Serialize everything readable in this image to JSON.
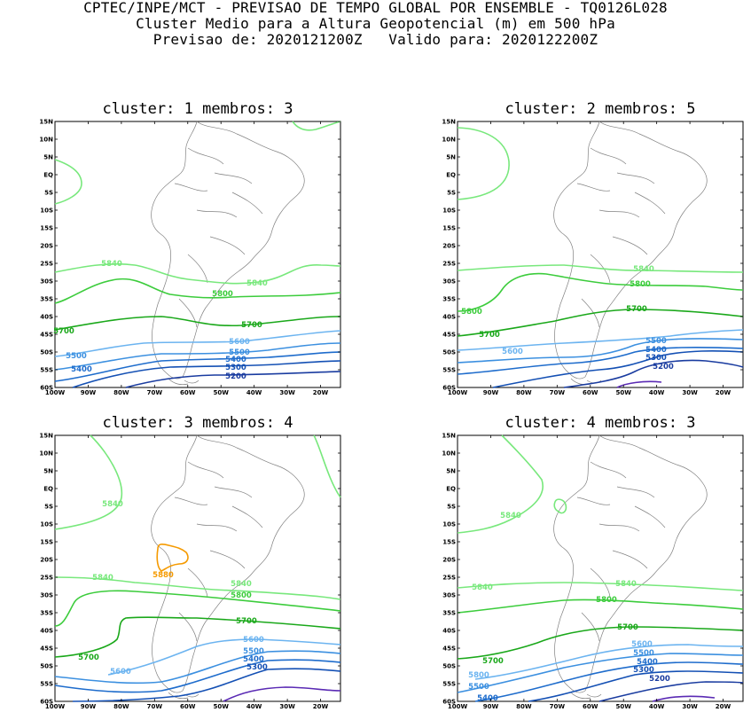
{
  "header": {
    "line1": "CPTEC/INPE/MCT - PREVISAO DE TEMPO GLOBAL POR ENSEMBLE - TQ0126L028",
    "line2": "Cluster Medio para a Altura Geopotencial (m) em 500 hPa",
    "line3": "Previsao de: 2020121200Z   Valido para: 2020122200Z"
  },
  "lat_ticks": [
    "15N",
    "10N",
    "5N",
    "EQ",
    "5S",
    "10S",
    "15S",
    "20S",
    "25S",
    "30S",
    "35S",
    "40S",
    "45S",
    "50S",
    "55S",
    "60S"
  ],
  "lon_ticks": [
    "100W",
    "90W",
    "80W",
    "70W",
    "60W",
    "50W",
    "40W",
    "30W",
    "20W"
  ],
  "colors": {
    "c5880": "#f59a00",
    "c5840": "#78e87c",
    "c5800": "#3ccc3c",
    "c5700": "#1aa81a",
    "c5600": "#6cb4f0",
    "c5500": "#3c90e0",
    "c5400": "#1e6ccc",
    "c5300": "#1450b4",
    "c5200": "#1a3ca0",
    "c5100": "#5a2ab4",
    "coast": "#808080"
  },
  "panels": [
    {
      "cluster_label": "cluster:",
      "cluster_num": "1",
      "membros_label": "membros:",
      "membros_num": "3",
      "labels": {
        "l5840a": "5840",
        "l5840b": "5840",
        "l5800": "5800",
        "l5700a": "5700",
        "l5700b": "5700",
        "l5600": "5600",
        "l5500a": "5500",
        "l5500b": "5500",
        "l5400a": "5400",
        "l5400b": "5400",
        "l5300": "5300",
        "l5200": "5200"
      }
    },
    {
      "cluster_label": "cluster:",
      "cluster_num": "2",
      "membros_label": "membros:",
      "membros_num": "5",
      "labels": {
        "l5840": "5840",
        "l5800a": "5800",
        "l5800b": "5800",
        "l5700a": "5700",
        "l5700b": "5700",
        "l5600": "5600",
        "l5500": "5500",
        "l5400": "5400",
        "l5300": "5300",
        "l5200": "5200"
      }
    },
    {
      "cluster_label": "cluster:",
      "cluster_num": "3",
      "membros_label": "membros:",
      "membros_num": "4",
      "labels": {
        "l5840a": "5840",
        "l5840b": "5840",
        "l5840c": "5840",
        "l5880": "5880",
        "l5800": "5800",
        "l5700a": "5700",
        "l5700b": "5700",
        "l5600a": "5600",
        "l5600b": "5600",
        "l5500": "5500",
        "l5400": "5400",
        "l5300": "5300"
      }
    },
    {
      "cluster_label": "cluster:",
      "cluster_num": "4",
      "membros_label": "membros:",
      "membros_num": "3",
      "labels": {
        "l5840a": "5840",
        "l5840b": "5840",
        "l5840c": "5840",
        "l5800": "5800",
        "l5700a": "5700",
        "l5700b": "5700",
        "l5600": "5600",
        "l5800b": "5800",
        "l5500a": "5500",
        "l5500b": "5500",
        "l5400a": "5400",
        "l5400b": "5400",
        "l5300": "5300",
        "l5200": "5200"
      }
    }
  ]
}
